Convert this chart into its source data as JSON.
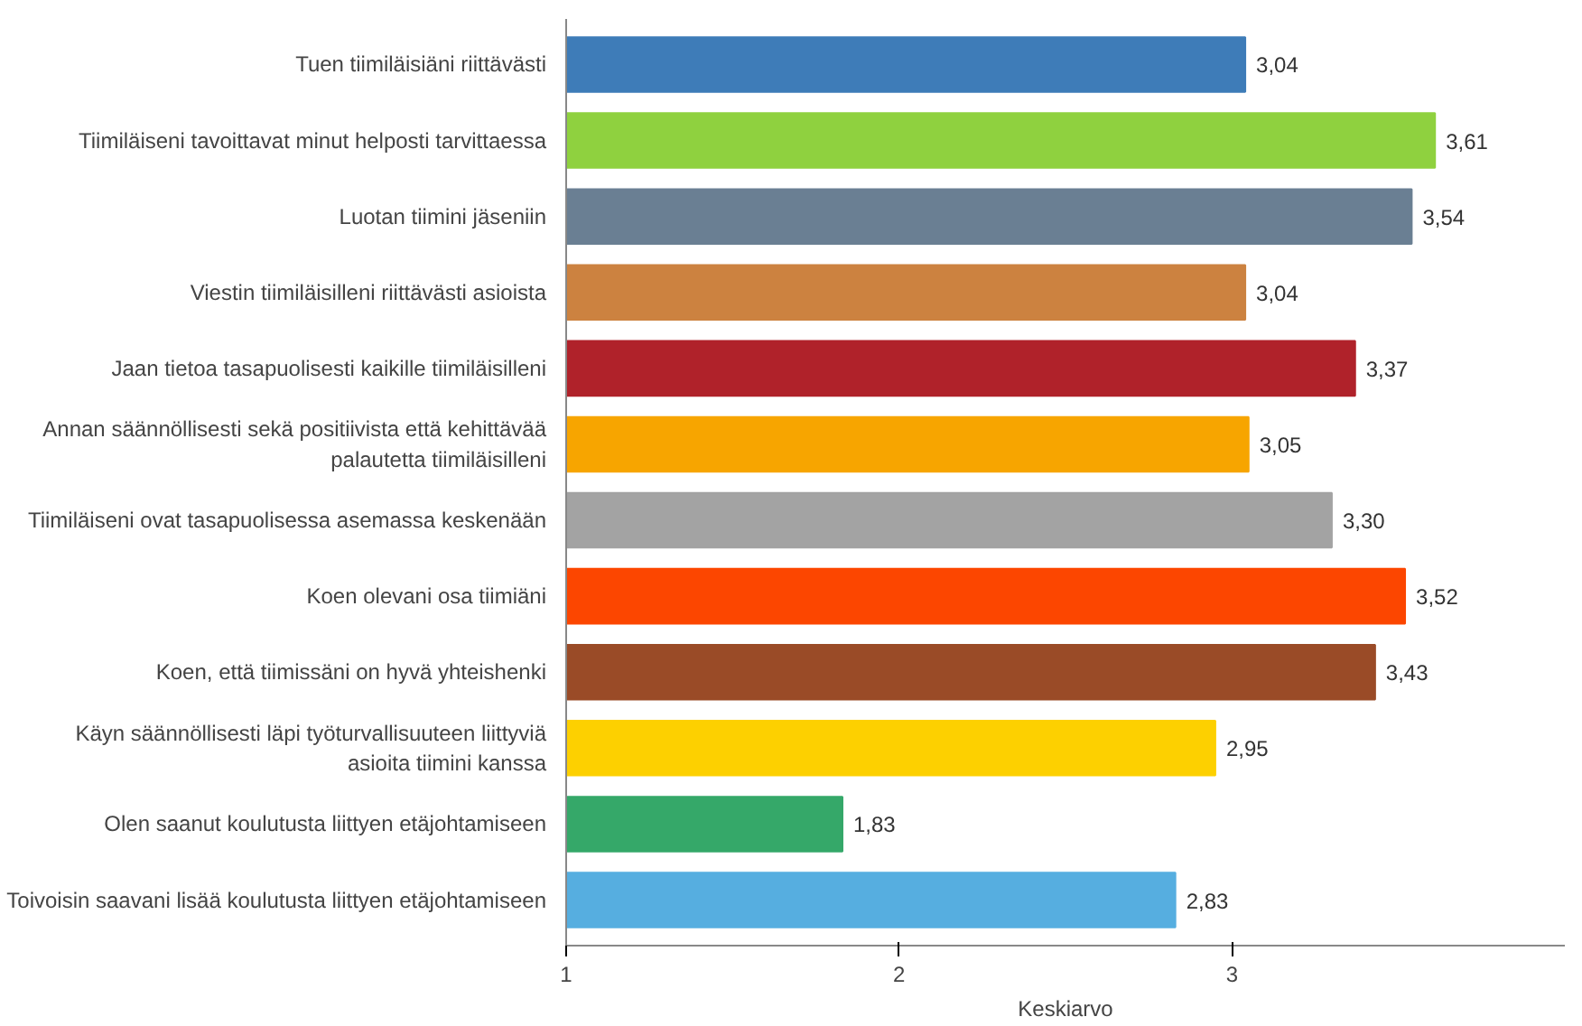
{
  "chart_data": {
    "type": "bar",
    "orientation": "horizontal",
    "xlabel": "Keskiarvo",
    "categories": [
      "Tuen tiimiläisiäni riittävästi",
      "Tiimiläiseni tavoittavat minut helposti tarvittaessa",
      "Luotan tiimini jäseniin",
      "Viestin tiimiläisilleni riittävästi asioista",
      "Jaan tietoa tasapuolisesti kaikille tiimiläisilleni",
      "Annan säännöllisesti sekä positiivista että kehittävää palautetta tiimiläisilleni",
      "Tiimiläiseni ovat tasapuolisessa asemassa keskenään",
      "Koen olevani osa tiimiäni",
      "Koen, että tiimissäni on hyvä yhteishenki",
      "Käyn säännöllisesti läpi työturvallisuuteen liittyviä asioita tiimini kanssa",
      "Olen saanut koulutusta liittyen etäjohtamiseen",
      "Toivoisin saavani lisää koulutusta liittyen etäjohtamiseen"
    ],
    "values": [
      3.04,
      3.61,
      3.54,
      3.04,
      3.37,
      3.05,
      3.3,
      3.52,
      3.43,
      2.95,
      1.83,
      2.83
    ],
    "value_labels": [
      "3,04",
      "3,61",
      "3,54",
      "3,04",
      "3,37",
      "3,05",
      "3,30",
      "3,52",
      "3,43",
      "2,95",
      "1,83",
      "2,83"
    ],
    "colors": [
      "#3e7cb8",
      "#8fd13f",
      "#6a7f93",
      "#cc8240",
      "#b0222a",
      "#f7a500",
      "#a3a3a3",
      "#fc4600",
      "#9a4b27",
      "#fdd000",
      "#35a869",
      "#56aee0"
    ],
    "xlim": [
      1,
      4
    ],
    "xticks": [
      1,
      2,
      3
    ],
    "grid": false
  }
}
